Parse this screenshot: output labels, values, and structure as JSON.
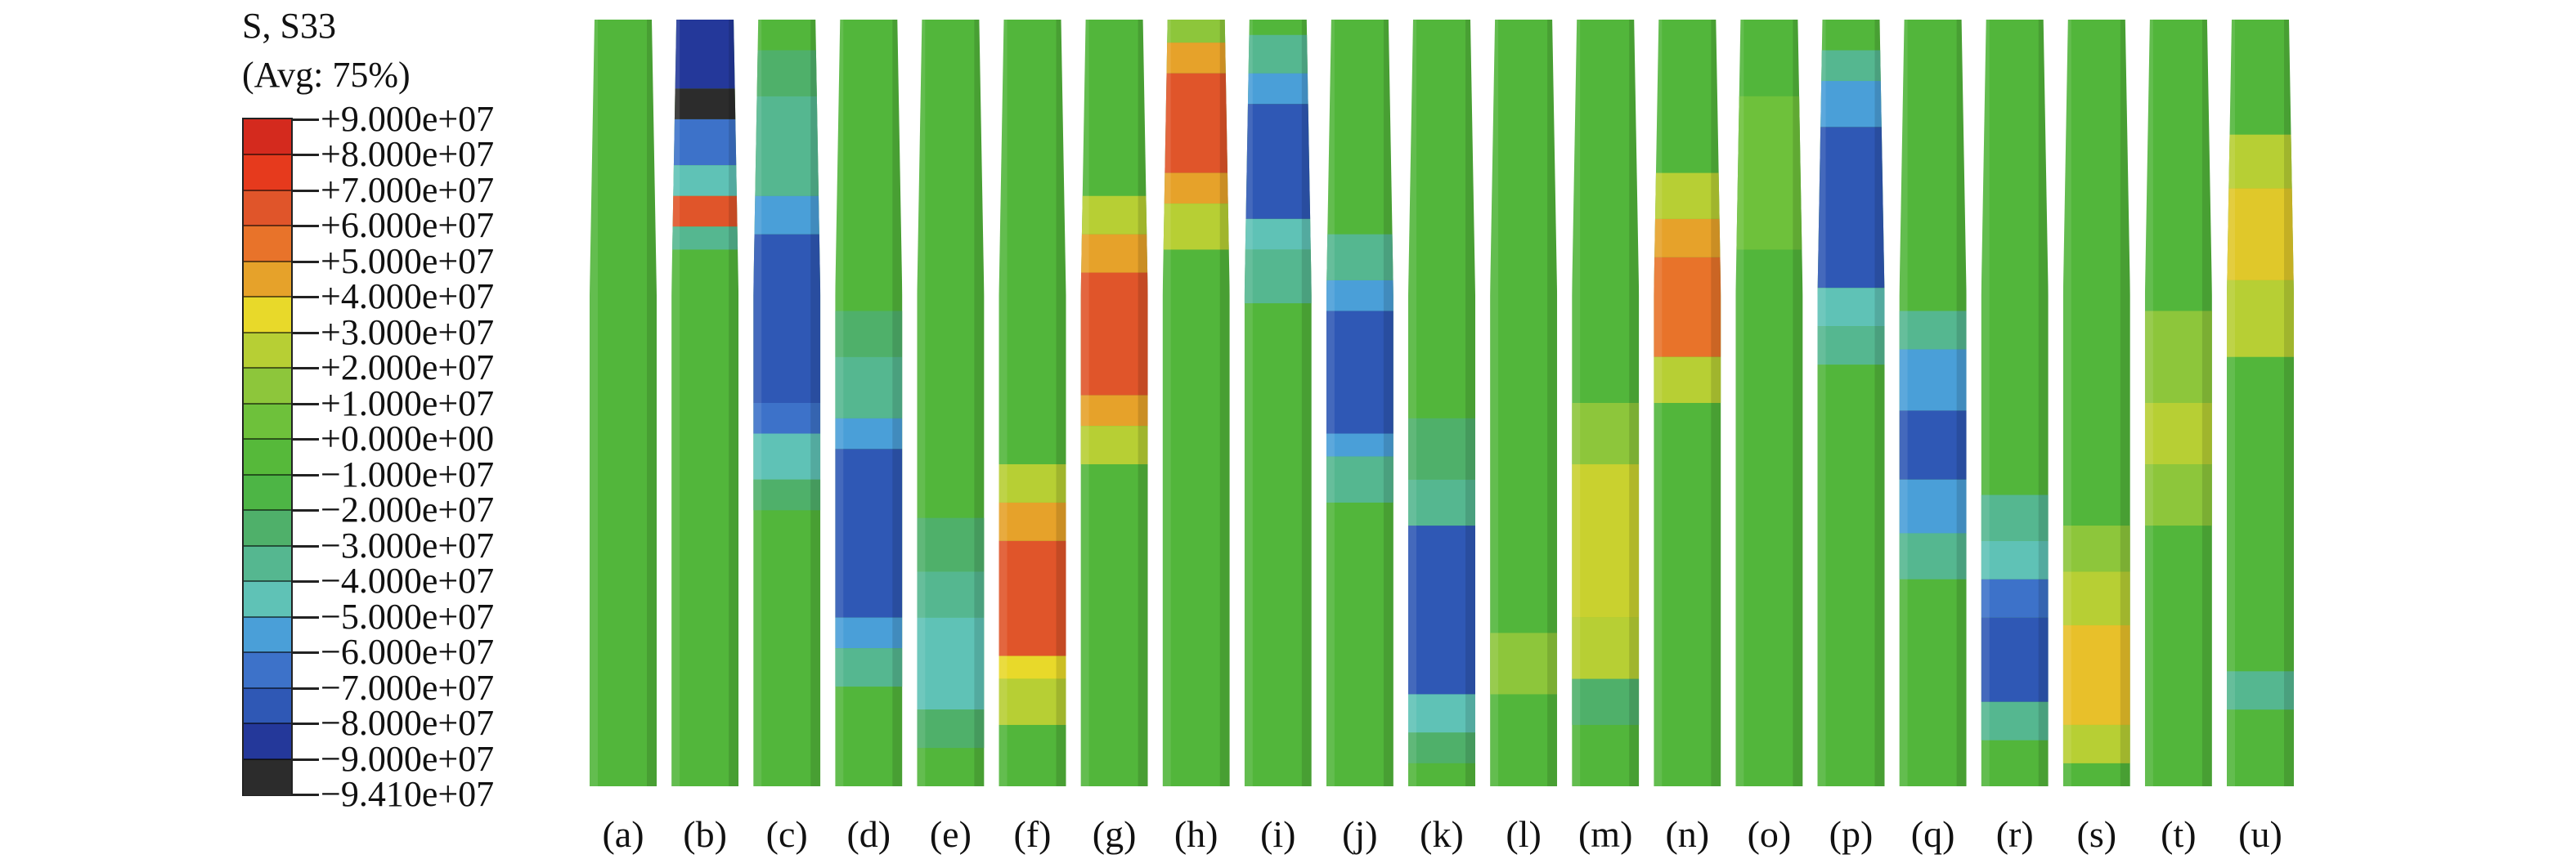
{
  "legend": {
    "title_line1": "S, S33",
    "title_line2": "(Avg: 75%)",
    "tick_labels": [
      "+9.000e+07",
      "+8.000e+07",
      "+7.000e+07",
      "+6.000e+07",
      "+5.000e+07",
      "+4.000e+07",
      "+3.000e+07",
      "+2.000e+07",
      "+1.000e+07",
      "+0.000e+00",
      "−1.000e+07",
      "−2.000e+07",
      "−3.000e+07",
      "−4.000e+07",
      "−5.000e+07",
      "−6.000e+07",
      "−7.000e+07",
      "−8.000e+07",
      "−9.000e+07",
      "−9.410e+07"
    ],
    "colors": [
      "#d42a1e",
      "#e63a1d",
      "#e0552a",
      "#e8732a",
      "#e6a22a",
      "#e8d92a",
      "#b7cf34",
      "#8dc63b",
      "#6ec13b",
      "#56b93a",
      "#4db545",
      "#4fb06a",
      "#55b790",
      "#5fc2b6",
      "#4a9fd8",
      "#3d72c9",
      "#2f58b5",
      "#24389a",
      "#2c2c2c"
    ]
  },
  "panels": [
    {
      "label": "(a)",
      "segments": []
    },
    {
      "label": "(b)",
      "segments": [
        {
          "from": 0.0,
          "to": 0.09,
          "color": "#24389a"
        },
        {
          "from": 0.09,
          "to": 0.13,
          "color": "#2c2c2c"
        },
        {
          "from": 0.13,
          "to": 0.19,
          "color": "#3d72c9"
        },
        {
          "from": 0.19,
          "to": 0.23,
          "color": "#5fc2b6"
        },
        {
          "from": 0.23,
          "to": 0.27,
          "color": "#e0552a"
        },
        {
          "from": 0.27,
          "to": 0.3,
          "color": "#55b790"
        }
      ]
    },
    {
      "label": "(c)",
      "segments": [
        {
          "from": 0.04,
          "to": 0.1,
          "color": "#4fb06a"
        },
        {
          "from": 0.1,
          "to": 0.23,
          "color": "#55b790"
        },
        {
          "from": 0.23,
          "to": 0.28,
          "color": "#4a9fd8"
        },
        {
          "from": 0.28,
          "to": 0.5,
          "color": "#2f58b5"
        },
        {
          "from": 0.5,
          "to": 0.54,
          "color": "#3d72c9"
        },
        {
          "from": 0.54,
          "to": 0.6,
          "color": "#5fc2b6"
        },
        {
          "from": 0.6,
          "to": 0.64,
          "color": "#4fb06a"
        }
      ]
    },
    {
      "label": "(d)",
      "segments": [
        {
          "from": 0.38,
          "to": 0.44,
          "color": "#4fb06a"
        },
        {
          "from": 0.44,
          "to": 0.52,
          "color": "#55b790"
        },
        {
          "from": 0.52,
          "to": 0.56,
          "color": "#4a9fd8"
        },
        {
          "from": 0.56,
          "to": 0.78,
          "color": "#2f58b5"
        },
        {
          "from": 0.78,
          "to": 0.82,
          "color": "#4a9fd8"
        },
        {
          "from": 0.82,
          "to": 0.87,
          "color": "#55b790"
        }
      ]
    },
    {
      "label": "(e)",
      "segments": [
        {
          "from": 0.65,
          "to": 0.72,
          "color": "#4fb06a"
        },
        {
          "from": 0.72,
          "to": 0.78,
          "color": "#55b790"
        },
        {
          "from": 0.78,
          "to": 0.9,
          "color": "#5fc2b6"
        },
        {
          "from": 0.9,
          "to": 0.95,
          "color": "#4fb06a"
        }
      ]
    },
    {
      "label": "(f)",
      "segments": [
        {
          "from": 0.58,
          "to": 0.63,
          "color": "#b7cf34"
        },
        {
          "from": 0.63,
          "to": 0.68,
          "color": "#e6a22a"
        },
        {
          "from": 0.68,
          "to": 0.83,
          "color": "#e0552a"
        },
        {
          "from": 0.83,
          "to": 0.86,
          "color": "#e8d92a"
        },
        {
          "from": 0.86,
          "to": 0.92,
          "color": "#b7cf34"
        }
      ]
    },
    {
      "label": "(g)",
      "segments": [
        {
          "from": 0.23,
          "to": 0.28,
          "color": "#b7cf34"
        },
        {
          "from": 0.28,
          "to": 0.33,
          "color": "#e6a22a"
        },
        {
          "from": 0.33,
          "to": 0.49,
          "color": "#e0552a"
        },
        {
          "from": 0.49,
          "to": 0.53,
          "color": "#e6a22a"
        },
        {
          "from": 0.53,
          "to": 0.58,
          "color": "#b7cf34"
        }
      ]
    },
    {
      "label": "(h)",
      "segments": [
        {
          "from": 0.0,
          "to": 0.03,
          "color": "#8dc63b"
        },
        {
          "from": 0.03,
          "to": 0.07,
          "color": "#e6a22a"
        },
        {
          "from": 0.07,
          "to": 0.2,
          "color": "#e0552a"
        },
        {
          "from": 0.2,
          "to": 0.24,
          "color": "#e6a22a"
        },
        {
          "from": 0.24,
          "to": 0.3,
          "color": "#b7cf34"
        }
      ]
    },
    {
      "label": "(i)",
      "segments": [
        {
          "from": 0.02,
          "to": 0.07,
          "color": "#55b790"
        },
        {
          "from": 0.07,
          "to": 0.11,
          "color": "#4a9fd8"
        },
        {
          "from": 0.11,
          "to": 0.26,
          "color": "#2f58b5"
        },
        {
          "from": 0.26,
          "to": 0.3,
          "color": "#5fc2b6"
        },
        {
          "from": 0.3,
          "to": 0.37,
          "color": "#55b790"
        }
      ]
    },
    {
      "label": "(j)",
      "segments": [
        {
          "from": 0.28,
          "to": 0.34,
          "color": "#55b790"
        },
        {
          "from": 0.34,
          "to": 0.38,
          "color": "#4a9fd8"
        },
        {
          "from": 0.38,
          "to": 0.54,
          "color": "#2f58b5"
        },
        {
          "from": 0.54,
          "to": 0.57,
          "color": "#4a9fd8"
        },
        {
          "from": 0.57,
          "to": 0.63,
          "color": "#55b790"
        }
      ]
    },
    {
      "label": "(k)",
      "segments": [
        {
          "from": 0.52,
          "to": 0.6,
          "color": "#4fb06a"
        },
        {
          "from": 0.6,
          "to": 0.66,
          "color": "#55b790"
        },
        {
          "from": 0.66,
          "to": 0.88,
          "color": "#2f58b5"
        },
        {
          "from": 0.88,
          "to": 0.93,
          "color": "#5fc2b6"
        },
        {
          "from": 0.93,
          "to": 0.97,
          "color": "#4fb06a"
        }
      ]
    },
    {
      "label": "(l)",
      "segments": [
        {
          "from": 0.8,
          "to": 0.88,
          "color": "#8dc63b"
        }
      ]
    },
    {
      "label": "(m)",
      "segments": [
        {
          "from": 0.5,
          "to": 0.58,
          "color": "#8dc63b"
        },
        {
          "from": 0.58,
          "to": 0.78,
          "color": "#c9d12f"
        },
        {
          "from": 0.78,
          "to": 0.86,
          "color": "#b7cf34"
        },
        {
          "from": 0.86,
          "to": 0.92,
          "color": "#4fb06a"
        }
      ]
    },
    {
      "label": "(n)",
      "segments": [
        {
          "from": 0.2,
          "to": 0.26,
          "color": "#b7cf34"
        },
        {
          "from": 0.26,
          "to": 0.31,
          "color": "#e6a22a"
        },
        {
          "from": 0.31,
          "to": 0.44,
          "color": "#e8732a"
        },
        {
          "from": 0.44,
          "to": 0.5,
          "color": "#b7cf34"
        }
      ]
    },
    {
      "label": "(o)",
      "segments": [
        {
          "from": 0.1,
          "to": 0.3,
          "color": "#6ec13b"
        }
      ]
    },
    {
      "label": "(p)",
      "segments": [
        {
          "from": 0.04,
          "to": 0.08,
          "color": "#55b790"
        },
        {
          "from": 0.08,
          "to": 0.14,
          "color": "#4a9fd8"
        },
        {
          "from": 0.14,
          "to": 0.35,
          "color": "#2f58b5"
        },
        {
          "from": 0.35,
          "to": 0.4,
          "color": "#5fc2b6"
        },
        {
          "from": 0.4,
          "to": 0.45,
          "color": "#55b790"
        }
      ]
    },
    {
      "label": "(q)",
      "segments": [
        {
          "from": 0.38,
          "to": 0.43,
          "color": "#55b790"
        },
        {
          "from": 0.43,
          "to": 0.51,
          "color": "#4a9fd8"
        },
        {
          "from": 0.51,
          "to": 0.6,
          "color": "#2f58b5"
        },
        {
          "from": 0.6,
          "to": 0.67,
          "color": "#4a9fd8"
        },
        {
          "from": 0.67,
          "to": 0.73,
          "color": "#55b790"
        }
      ]
    },
    {
      "label": "(r)",
      "segments": [
        {
          "from": 0.62,
          "to": 0.68,
          "color": "#55b790"
        },
        {
          "from": 0.68,
          "to": 0.73,
          "color": "#5fc2b6"
        },
        {
          "from": 0.73,
          "to": 0.78,
          "color": "#3d72c9"
        },
        {
          "from": 0.78,
          "to": 0.89,
          "color": "#2f58b5"
        },
        {
          "from": 0.89,
          "to": 0.94,
          "color": "#55b790"
        }
      ]
    },
    {
      "label": "(s)",
      "segments": [
        {
          "from": 0.66,
          "to": 0.72,
          "color": "#8dc63b"
        },
        {
          "from": 0.72,
          "to": 0.79,
          "color": "#b7cf34"
        },
        {
          "from": 0.79,
          "to": 0.92,
          "color": "#e8c02a"
        },
        {
          "from": 0.92,
          "to": 0.97,
          "color": "#b7cf34"
        }
      ]
    },
    {
      "label": "(t)",
      "segments": [
        {
          "from": 0.38,
          "to": 0.5,
          "color": "#8dc63b"
        },
        {
          "from": 0.5,
          "to": 0.58,
          "color": "#b7cf34"
        },
        {
          "from": 0.58,
          "to": 0.66,
          "color": "#8dc63b"
        }
      ]
    },
    {
      "label": "(u)",
      "segments": [
        {
          "from": 0.15,
          "to": 0.22,
          "color": "#b7cf34"
        },
        {
          "from": 0.22,
          "to": 0.34,
          "color": "#e0c82a"
        },
        {
          "from": 0.34,
          "to": 0.44,
          "color": "#b7cf34"
        },
        {
          "from": 0.85,
          "to": 0.9,
          "color": "#55b790"
        }
      ]
    }
  ],
  "base_color": "#52b63b"
}
